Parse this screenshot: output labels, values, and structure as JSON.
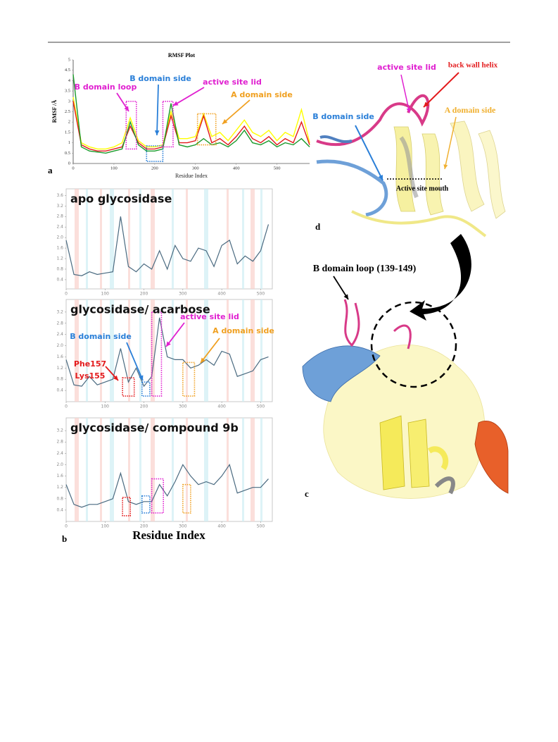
{
  "chart_data": [
    {
      "type": "line",
      "title": "RMSF Plot",
      "x_label": "Residue Index",
      "y_label": "RMSF /Å",
      "x": [
        0,
        20,
        40,
        60,
        80,
        100,
        120,
        140,
        160,
        180,
        200,
        220,
        240,
        260,
        280,
        300,
        320,
        340,
        360,
        380,
        400,
        420,
        440,
        460,
        480,
        500,
        520,
        540,
        560,
        580
      ],
      "series": [
        {
          "color": "#ffff00",
          "values": [
            3.2,
            1.0,
            0.8,
            0.7,
            0.7,
            0.8,
            1.0,
            2.2,
            1.1,
            0.8,
            0.8,
            0.9,
            2.5,
            1.2,
            1.2,
            1.3,
            2.4,
            1.3,
            1.5,
            1.1,
            1.6,
            2.1,
            1.5,
            1.3,
            1.6,
            1.1,
            1.5,
            1.3,
            2.6,
            1.0
          ]
        },
        {
          "color": "#e31a1c",
          "values": [
            3.0,
            0.9,
            0.7,
            0.6,
            0.6,
            0.7,
            0.8,
            1.8,
            1.0,
            0.7,
            0.7,
            0.8,
            2.3,
            1.0,
            1.0,
            1.1,
            2.3,
            1.0,
            1.2,
            0.9,
            1.3,
            1.8,
            1.2,
            1.0,
            1.3,
            0.9,
            1.2,
            1.0,
            2.0,
            0.9
          ]
        },
        {
          "color": "#1a9a2a",
          "values": [
            4.3,
            0.8,
            0.6,
            0.55,
            0.5,
            0.6,
            0.7,
            2.0,
            0.9,
            0.6,
            0.6,
            0.7,
            2.9,
            0.9,
            0.8,
            0.9,
            1.2,
            0.9,
            1.0,
            0.8,
            1.1,
            1.6,
            1.0,
            0.9,
            1.1,
            0.8,
            1.0,
            0.9,
            1.2,
            0.8
          ]
        }
      ],
      "xlim": [
        0,
        580
      ],
      "ylim": [
        0,
        5
      ],
      "xticks": [
        0,
        100,
        200,
        300,
        400,
        500
      ],
      "yticks": [
        0,
        0.5,
        1,
        1.5,
        2,
        2.5,
        3,
        3.5,
        4,
        4.5,
        5
      ],
      "annotations": [
        {
          "text": "B domain loop",
          "color": "#e020d0"
        },
        {
          "text": "B domain side",
          "color": "#2a7fd8"
        },
        {
          "text": "active site lid",
          "color": "#e020d0"
        },
        {
          "text": "A domain side",
          "color": "#f0a020"
        }
      ],
      "regions": [
        {
          "color": "#e020d0",
          "x": [
            130,
            155
          ],
          "y": [
            0.7,
            3
          ]
        },
        {
          "color": "#2a7fd8",
          "x": [
            180,
            220
          ],
          "y": [
            0.1,
            0.85
          ]
        },
        {
          "color": "#e020d0",
          "x": [
            220,
            245
          ],
          "y": [
            0.8,
            3
          ]
        },
        {
          "color": "#f0a020",
          "x": [
            305,
            350
          ],
          "y": [
            0.9,
            2.4
          ]
        }
      ]
    },
    {
      "type": "line",
      "title": "apo glycosidase",
      "x": [
        0,
        20,
        40,
        60,
        80,
        100,
        120,
        140,
        160,
        180,
        200,
        220,
        240,
        260,
        280,
        300,
        320,
        340,
        360,
        380,
        400,
        420,
        440,
        460,
        480,
        500,
        520
      ],
      "series": [
        {
          "color": "#4a6a80",
          "values": [
            1.9,
            0.6,
            0.55,
            0.7,
            0.6,
            0.65,
            0.7,
            2.8,
            0.9,
            0.7,
            1.0,
            0.8,
            1.5,
            0.8,
            1.7,
            1.2,
            1.1,
            1.6,
            1.5,
            0.9,
            1.7,
            1.9,
            1.0,
            1.3,
            1.1,
            1.5,
            2.5
          ]
        }
      ],
      "xlim": [
        0,
        530
      ],
      "ylim": [
        0.05,
        3.85
      ],
      "xticks": [
        0,
        100,
        200,
        300,
        400,
        500
      ],
      "yticks": [
        0.4,
        0.8,
        1.2,
        1.6,
        {
          "value": 2,
          "label": "2.0"
        },
        2.4,
        2.8,
        3.2,
        3.6
      ],
      "annotations": [],
      "regions": []
    },
    {
      "type": "line",
      "title": "glycosidase/ acarbose",
      "x": [
        0,
        20,
        40,
        60,
        80,
        100,
        120,
        140,
        160,
        180,
        200,
        220,
        240,
        260,
        280,
        300,
        320,
        340,
        360,
        380,
        400,
        420,
        440,
        460,
        480,
        500,
        520
      ],
      "series": [
        {
          "color": "#4a6a80",
          "values": [
            1.5,
            0.6,
            0.55,
            0.9,
            0.6,
            0.7,
            0.8,
            1.9,
            0.7,
            1.2,
            0.55,
            0.9,
            3.0,
            1.6,
            1.5,
            1.5,
            1.2,
            1.3,
            1.5,
            1.3,
            1.8,
            1.7,
            0.9,
            1.0,
            1.1,
            1.5,
            1.6
          ]
        }
      ],
      "xlim": [
        0,
        530
      ],
      "ylim": [
        0,
        3.65
      ],
      "xticks": [
        0,
        100,
        200,
        300,
        400,
        500
      ],
      "yticks": [
        0.4,
        0.8,
        1.2,
        1.6,
        {
          "value": 2,
          "label": "2.0"
        },
        2.4,
        2.8,
        3.2
      ],
      "annotations": [
        {
          "text": "B domain side",
          "color": "#2a7fd8"
        },
        {
          "text": "active site lid",
          "color": "#e020d0"
        },
        {
          "text": "A domain side",
          "color": "#f0a020"
        },
        {
          "text": "Phe157",
          "color": "#e31a1c"
        },
        {
          "text": "Lys155",
          "color": "#e31a1c"
        }
      ],
      "regions": [
        {
          "color": "#e31a1c",
          "x": [
            145,
            175
          ],
          "y": [
            0.2,
            0.85
          ]
        },
        {
          "color": "#2a7fd8",
          "x": [
            195,
            215
          ],
          "y": [
            0.2,
            0.7
          ]
        },
        {
          "color": "#e020d0",
          "x": [
            220,
            245
          ],
          "y": [
            0.2,
            3.2
          ]
        },
        {
          "color": "#f0a020",
          "x": [
            300,
            330
          ],
          "y": [
            0.2,
            1.4
          ]
        }
      ]
    },
    {
      "type": "line",
      "title": "glycosidase/ compound 9b",
      "x": [
        0,
        20,
        40,
        60,
        80,
        100,
        120,
        140,
        160,
        180,
        200,
        220,
        240,
        260,
        280,
        300,
        320,
        340,
        360,
        380,
        400,
        420,
        440,
        460,
        480,
        500,
        520
      ],
      "series": [
        {
          "color": "#4a6a80",
          "values": [
            1.3,
            0.6,
            0.5,
            0.6,
            0.6,
            0.7,
            0.8,
            1.7,
            0.7,
            0.6,
            0.7,
            0.7,
            1.3,
            0.9,
            1.4,
            2.0,
            1.6,
            1.3,
            1.4,
            1.3,
            1.6,
            2.0,
            1.0,
            1.1,
            1.2,
            1.2,
            1.5
          ]
        }
      ],
      "xlim": [
        0,
        530
      ],
      "ylim": [
        0,
        3.65
      ],
      "xticks": [
        0,
        100,
        200,
        300,
        400,
        500
      ],
      "yticks": [
        0.4,
        0.8,
        1.2,
        1.6,
        {
          "value": 2,
          "label": "2.0"
        },
        2.4,
        2.8,
        3.2
      ],
      "annotations": [],
      "regions": [
        {
          "color": "#e31a1c",
          "x": [
            145,
            165
          ],
          "y": [
            0.2,
            0.85
          ]
        },
        {
          "color": "#2a7fd8",
          "x": [
            195,
            215
          ],
          "y": [
            0.3,
            0.9
          ]
        },
        {
          "color": "#e020d0",
          "x": [
            220,
            250
          ],
          "y": [
            0.3,
            1.5
          ]
        },
        {
          "color": "#f0a020",
          "x": [
            300,
            320
          ],
          "y": [
            0.3,
            1.3
          ]
        }
      ]
    }
  ],
  "figure": {
    "panel_labels": {
      "a": "a",
      "b": "b",
      "c": "c",
      "d": "d"
    },
    "b_x_label": "Residue Index",
    "structure_labels": {
      "active_site_lid": "active site lid",
      "back_wall_helix": "back wall helix",
      "b_domain_side": "B domain side",
      "a_domain_side": "A domain side",
      "active_site_mouth": "Active site mouth",
      "b_domain_loop": "B domain loop (139-149)"
    }
  }
}
